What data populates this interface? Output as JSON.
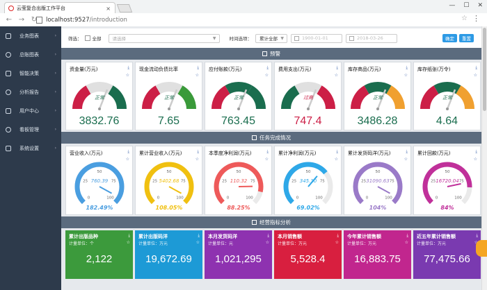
{
  "browser": {
    "tab_title": "云莹复合出版工作平台",
    "url_host": "localhost:9527",
    "url_path": "/introduction",
    "win": [
      "—",
      "☐",
      "✕"
    ]
  },
  "sidebar": {
    "items": [
      {
        "label": "业务图表",
        "icon": "grid-icon"
      },
      {
        "label": "总账图表",
        "icon": "pie-icon"
      },
      {
        "label": "智能决策",
        "icon": "brain-icon"
      },
      {
        "label": "分析报告",
        "icon": "report-icon"
      },
      {
        "label": "用户中心",
        "icon": "user-icon"
      },
      {
        "label": "看板管理",
        "icon": "board-icon"
      },
      {
        "label": "系统设置",
        "icon": "gear-icon"
      }
    ]
  },
  "filter": {
    "label": "筛选：",
    "all": "全部",
    "select_placeholder": "请选择",
    "time_label": "时间选项：",
    "time_value": "累计全部",
    "date_from": "1900-01-01",
    "date_to": "2018-03-26",
    "confirm": "确定",
    "reset": "重置"
  },
  "sections": {
    "warning": "预警",
    "tasks": "任务完成情况",
    "ops": "经营指标分析"
  },
  "warning_cards": [
    {
      "title": "资金量(万元)",
      "value": "3832.76",
      "status": "正常",
      "colors": [
        "#cc1f46",
        "#e0e0e0",
        "#1a6d4e"
      ]
    },
    {
      "title": "现金流动负债比率",
      "value": "7.65",
      "status": "正常",
      "colors": [
        "#cc1f46",
        "#e0e0e0",
        "#3a9a3a"
      ]
    },
    {
      "title": "应付账款(万元)",
      "value": "763.45",
      "status": "正常",
      "colors": [
        "#cc1f46",
        "#1a6d4e",
        "#1a6d4e"
      ]
    },
    {
      "title": "费用支出(万元)",
      "value": "747.4",
      "status": "过高",
      "colors": [
        "#1a6d4e",
        "#e0e0e0",
        "#cc1f46"
      ]
    },
    {
      "title": "库存商品(万元)",
      "value": "3486.28",
      "status": "正常",
      "colors": [
        "#cc1f46",
        "#1a6d4e",
        "#f0a030"
      ]
    },
    {
      "title": "库存纸张(万令)",
      "value": "4.64",
      "status": "正常",
      "colors": [
        "#cc1f46",
        "#1a6d4e",
        "#f0a030"
      ]
    }
  ],
  "task_cards": [
    {
      "title": "营业收入(万元)",
      "value": "760.39",
      "percent": "182.49%",
      "color": "#4a9ee0",
      "fill": 1.0,
      "tick_low": "0",
      "tick_25": "25",
      "tick_50": "50",
      "tick_75": "75",
      "tick_100": "100"
    },
    {
      "title": "累计营业收入(万元)",
      "value": "5402.68",
      "percent": "108.05%",
      "color": "#f0c010",
      "fill": 1.0,
      "tick_low": "0",
      "tick_25": "25",
      "tick_50": "50",
      "tick_75": "75",
      "tick_100": "100"
    },
    {
      "title": "本季度净利润(万元)",
      "value": "110.32",
      "percent": "88.25%",
      "color": "#ee5a5a",
      "fill": 0.8825,
      "tick_low": "0",
      "tick_25": "25",
      "tick_50": "50",
      "tick_75": "75",
      "tick_100": "100"
    },
    {
      "title": "累计净利润(万元)",
      "value": "345.10",
      "percent": "69.02%",
      "color": "#2ea8e8",
      "fill": 0.6902,
      "tick_low": "0",
      "tick_25": "25",
      "tick_50": "50",
      "tick_75": "75",
      "tick_100": "100"
    },
    {
      "title": "累计发货码洋(万元)",
      "value": "31090.63",
      "percent": "104%",
      "color": "#9a7ac8",
      "fill": 1.0,
      "tick_low": "0",
      "tick_25": "25",
      "tick_50": "50",
      "tick_75": "75",
      "tick_100": "100"
    },
    {
      "title": "累计回款(万元)",
      "value": "16720.04",
      "percent": "84%",
      "color": "#c0309a",
      "fill": 0.84,
      "tick_low": "0",
      "tick_25": "25",
      "tick_50": "50",
      "tick_75": "75",
      "tick_100": "100"
    }
  ],
  "kpi_cards": [
    {
      "title": "累计出版品种",
      "unit": "计量单位：个",
      "value": "2,122",
      "color": "#3c9a3c"
    },
    {
      "title": "累计出版码洋",
      "unit": "计量单位：万元",
      "value": "19,672.69",
      "color": "#1d9ad6"
    },
    {
      "title": "本月发货码洋",
      "unit": "计量单位：元",
      "value": "1,021,295",
      "color": "#8e32b0"
    },
    {
      "title": "本月销售额",
      "unit": "计量单位：万元",
      "value": "5,528.4",
      "color": "#d81f3f"
    },
    {
      "title": "今年累计销售额",
      "unit": "计量单位：万元",
      "value": "16,883.75",
      "color": "#c1268e"
    },
    {
      "title": "近五年累计销售额",
      "unit": "计量单位：万元",
      "value": "77,475.66",
      "color": "#7a3ab0"
    }
  ]
}
